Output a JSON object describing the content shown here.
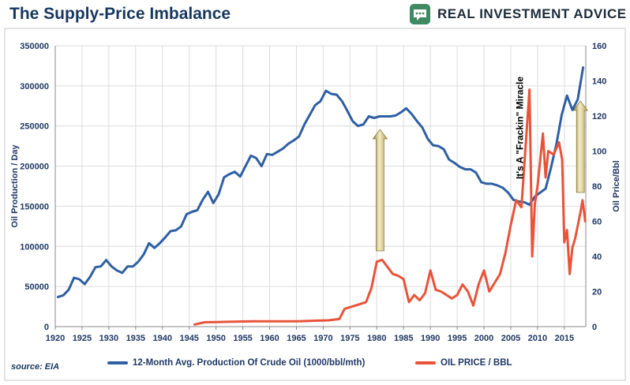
{
  "header": {
    "title": "The Supply-Price Imbalance",
    "brand": "REAL INVESTMENT ADVICE"
  },
  "source": "source: EIA",
  "chart_data": {
    "type": "line",
    "title": "The Supply-Price Imbalance",
    "ylabel": "Oil Production / Day",
    "y2label": "Oil Price/Bbl",
    "xlim": [
      1920,
      2019
    ],
    "ylim": [
      0,
      350000
    ],
    "y2lim": [
      0,
      160
    ],
    "x_ticks": [
      1920,
      1925,
      1930,
      1935,
      1940,
      1945,
      1950,
      1955,
      1960,
      1965,
      1970,
      1975,
      1980,
      1985,
      1990,
      1995,
      2000,
      2005,
      2010,
      2015
    ],
    "y_ticks": [
      0,
      50000,
      100000,
      150000,
      200000,
      250000,
      300000,
      350000
    ],
    "y2_ticks": [
      0,
      20,
      40,
      60,
      80,
      100,
      120,
      140,
      160
    ],
    "grid": true,
    "legend_position": "bottom",
    "annotation": "It's A \"Frackin\" Miracle",
    "series": [
      {
        "name": "12-Month Avg. Production Of Crude Oil (1000/bbl/mth)",
        "axis": "left",
        "color": "#2e5fa3",
        "points": [
          [
            1920.5,
            37000
          ],
          [
            1921.5,
            39000
          ],
          [
            1922.5,
            46000
          ],
          [
            1923.5,
            61000
          ],
          [
            1924.5,
            59000
          ],
          [
            1925.5,
            53000
          ],
          [
            1926.5,
            62000
          ],
          [
            1927.5,
            74000
          ],
          [
            1928.5,
            75000
          ],
          [
            1929.5,
            83000
          ],
          [
            1930.5,
            75000
          ],
          [
            1931.5,
            70000
          ],
          [
            1932.5,
            67000
          ],
          [
            1933.5,
            75000
          ],
          [
            1934.5,
            75000
          ],
          [
            1935.5,
            81000
          ],
          [
            1936.5,
            90000
          ],
          [
            1937.5,
            104000
          ],
          [
            1938.5,
            98000
          ],
          [
            1939.5,
            104000
          ],
          [
            1940.5,
            111000
          ],
          [
            1941.5,
            119000
          ],
          [
            1942.5,
            120000
          ],
          [
            1943.5,
            125000
          ],
          [
            1944.5,
            140000
          ],
          [
            1945.5,
            143000
          ],
          [
            1946.5,
            145000
          ],
          [
            1947.5,
            158000
          ],
          [
            1948.5,
            168000
          ],
          [
            1949.5,
            154000
          ],
          [
            1950.5,
            165000
          ],
          [
            1951.5,
            186000
          ],
          [
            1952.5,
            190000
          ],
          [
            1953.5,
            193000
          ],
          [
            1954.5,
            187000
          ],
          [
            1955.5,
            200000
          ],
          [
            1956.5,
            213000
          ],
          [
            1957.5,
            210000
          ],
          [
            1958.5,
            200000
          ],
          [
            1959.5,
            215000
          ],
          [
            1960.5,
            214000
          ],
          [
            1961.5,
            218000
          ],
          [
            1962.5,
            222000
          ],
          [
            1963.5,
            228000
          ],
          [
            1964.5,
            232000
          ],
          [
            1965.5,
            237000
          ],
          [
            1966.5,
            252000
          ],
          [
            1967.5,
            264000
          ],
          [
            1968.5,
            276000
          ],
          [
            1969.5,
            281000
          ],
          [
            1970.5,
            294000
          ],
          [
            1971.5,
            290000
          ],
          [
            1972.5,
            289000
          ],
          [
            1973.5,
            281000
          ],
          [
            1974.5,
            269000
          ],
          [
            1975.5,
            256000
          ],
          [
            1976.5,
            250000
          ],
          [
            1977.5,
            252000
          ],
          [
            1978.5,
            262000
          ],
          [
            1979.5,
            260000
          ],
          [
            1980.5,
            262000
          ],
          [
            1981.5,
            262000
          ],
          [
            1982.5,
            262000
          ],
          [
            1983.5,
            263000
          ],
          [
            1984.5,
            267000
          ],
          [
            1985.5,
            272000
          ],
          [
            1986.5,
            265000
          ],
          [
            1987.5,
            256000
          ],
          [
            1988.5,
            248000
          ],
          [
            1989.5,
            234000
          ],
          [
            1990.5,
            226000
          ],
          [
            1991.5,
            225000
          ],
          [
            1992.5,
            221000
          ],
          [
            1993.5,
            208000
          ],
          [
            1994.5,
            204000
          ],
          [
            1995.5,
            199000
          ],
          [
            1996.5,
            196000
          ],
          [
            1997.5,
            196000
          ],
          [
            1998.5,
            192000
          ],
          [
            1999.5,
            180000
          ],
          [
            2000.5,
            178000
          ],
          [
            2001.5,
            178000
          ],
          [
            2002.5,
            176000
          ],
          [
            2003.5,
            173000
          ],
          [
            2004.5,
            167000
          ],
          [
            2005.5,
            158000
          ],
          [
            2006.5,
            156000
          ],
          [
            2007.5,
            155000
          ],
          [
            2008.5,
            152000
          ],
          [
            2009.5,
            162000
          ],
          [
            2010.5,
            167000
          ],
          [
            2011.5,
            172000
          ],
          [
            2012.5,
            198000
          ],
          [
            2013.5,
            227000
          ],
          [
            2014.5,
            264000
          ],
          [
            2015.5,
            288000
          ],
          [
            2016.5,
            270000
          ],
          [
            2017.5,
            283000
          ],
          [
            2018.5,
            323000
          ]
        ]
      },
      {
        "name": "OIL PRICE / BBL",
        "axis": "right",
        "color": "#e8533a",
        "points": [
          [
            1946,
            1.2
          ],
          [
            1947,
            1.9
          ],
          [
            1948,
            2.5
          ],
          [
            1950,
            2.6
          ],
          [
            1953,
            2.8
          ],
          [
            1957,
            3.0
          ],
          [
            1960,
            3.0
          ],
          [
            1965,
            3.0
          ],
          [
            1969,
            3.4
          ],
          [
            1971,
            3.6
          ],
          [
            1973,
            4.3
          ],
          [
            1974,
            10.1
          ],
          [
            1976,
            12.0
          ],
          [
            1978,
            14.0
          ],
          [
            1979,
            22.0
          ],
          [
            1980,
            37.0
          ],
          [
            1981,
            38.0
          ],
          [
            1982,
            34.0
          ],
          [
            1983,
            30.0
          ],
          [
            1984,
            29.0
          ],
          [
            1985,
            27.0
          ],
          [
            1986,
            14.0
          ],
          [
            1987,
            18.0
          ],
          [
            1988,
            15.0
          ],
          [
            1989,
            19.0
          ],
          [
            1990,
            32.0
          ],
          [
            1991,
            21.0
          ],
          [
            1992,
            20.0
          ],
          [
            1993,
            18.0
          ],
          [
            1994,
            16.0
          ],
          [
            1995,
            18.0
          ],
          [
            1996,
            24.0
          ],
          [
            1997,
            20.0
          ],
          [
            1998,
            12.0
          ],
          [
            1999,
            24.0
          ],
          [
            2000,
            32.0
          ],
          [
            2001,
            20.0
          ],
          [
            2002,
            25.0
          ],
          [
            2003,
            30.0
          ],
          [
            2004,
            42.0
          ],
          [
            2005,
            58.0
          ],
          [
            2006,
            72.0
          ],
          [
            2007,
            68.0
          ],
          [
            2007.6,
            95.0
          ],
          [
            2008.5,
            135.0
          ],
          [
            2009.0,
            40.0
          ],
          [
            2009.5,
            70.0
          ],
          [
            2010,
            80.0
          ],
          [
            2011,
            110.0
          ],
          [
            2011.5,
            85.0
          ],
          [
            2012,
            100.0
          ],
          [
            2013,
            98.0
          ],
          [
            2014,
            105.0
          ],
          [
            2014.6,
            95.0
          ],
          [
            2015.0,
            48.0
          ],
          [
            2015.5,
            55.0
          ],
          [
            2016.0,
            30.0
          ],
          [
            2016.5,
            45.0
          ],
          [
            2017,
            50.0
          ],
          [
            2018,
            65.0
          ],
          [
            2018.4,
            72.0
          ],
          [
            2018.9,
            60.0
          ]
        ]
      }
    ]
  }
}
